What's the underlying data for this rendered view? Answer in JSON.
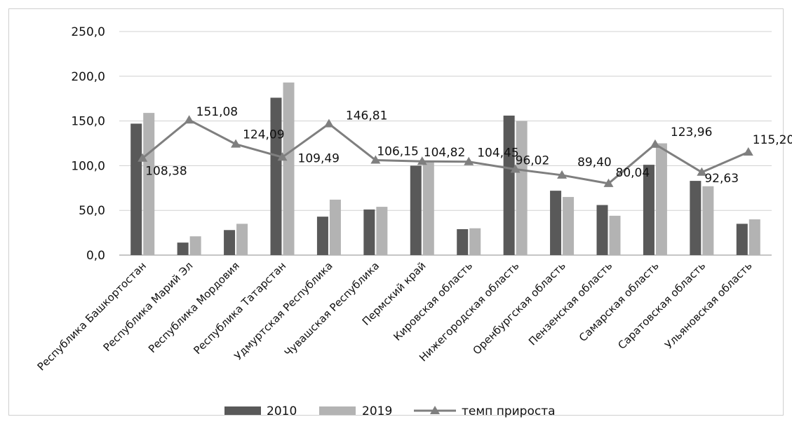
{
  "chart_data": {
    "type": "bar",
    "title": "",
    "xlabel": "",
    "ylabel": "",
    "ylim": [
      0,
      250
    ],
    "yticks": [
      0,
      50,
      100,
      150,
      200,
      250
    ],
    "ytick_labels": [
      "0,0",
      "50,0",
      "100,0",
      "150,0",
      "200,0",
      "250,0"
    ],
    "grid": true,
    "legend_position": "bottom",
    "categories": [
      "Республика Башкортостан",
      "Республика Марий Эл",
      "Республика Мордовия",
      "Республика Татарстан",
      "Удмуртская Республика",
      "Чувашская Республика",
      "Пермский край",
      "Кировская область",
      "Нижегородская область",
      "Оренбургская область",
      "Пензенская область",
      "Самарская область",
      "Саратовская область",
      "Ульяновская область"
    ],
    "series": [
      {
        "name": "2010",
        "type": "bar",
        "color": "#595959",
        "values": [
          147,
          14,
          28,
          176,
          43,
          51,
          100,
          29,
          156,
          72,
          56,
          101,
          83,
          35
        ]
      },
      {
        "name": "2019",
        "type": "bar",
        "color": "#b3b3b3",
        "values": [
          159,
          21,
          35,
          193,
          62,
          54,
          105,
          30,
          150,
          65,
          44,
          125,
          77,
          40
        ]
      },
      {
        "name": "темп прироста",
        "type": "line",
        "color": "#7f7f7f",
        "marker": "triangle",
        "values": [
          108.38,
          151.08,
          124.09,
          109.49,
          146.81,
          106.15,
          104.82,
          104.45,
          96.02,
          89.4,
          80.04,
          123.96,
          92.63,
          115.2
        ],
        "labels": [
          "108,38",
          "151,08",
          "124,09",
          "109,49",
          "146,81",
          "106,15",
          "104,82",
          "104,45",
          "96,02",
          "89,40",
          "80,04",
          "123,96",
          "92,63",
          "115,20"
        ]
      }
    ]
  }
}
